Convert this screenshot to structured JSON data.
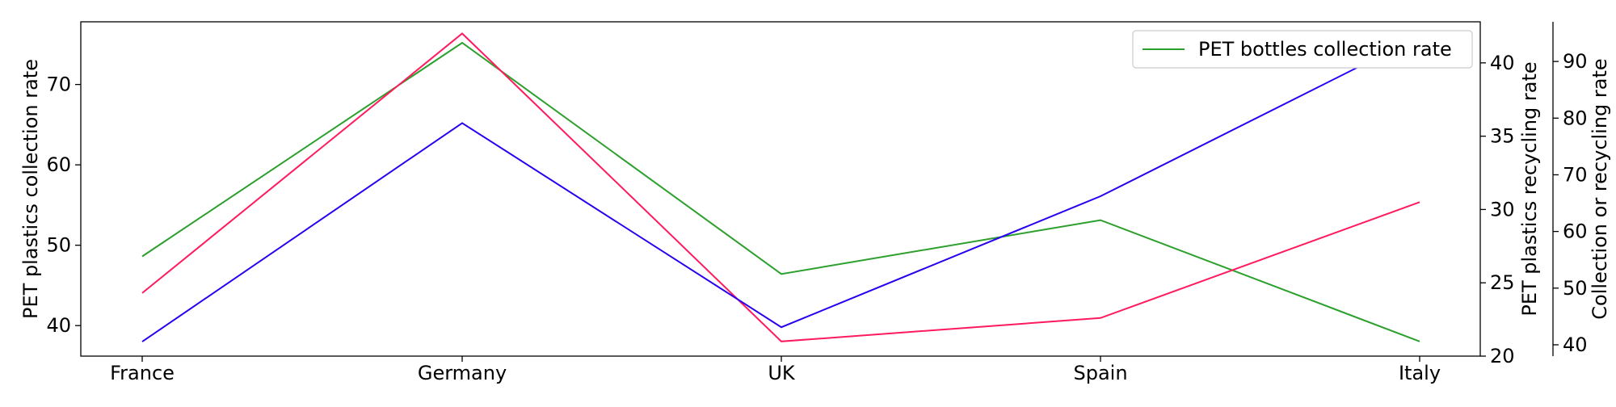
{
  "chart_data": {
    "type": "line",
    "categories": [
      "France",
      "Germany",
      "UK",
      "Spain",
      "Italy"
    ],
    "axes": {
      "left": {
        "label": "PET plastics collection rate",
        "ylim": [
          36.2,
          77.8
        ],
        "ticks": [
          40,
          50,
          60,
          70
        ]
      },
      "right_inner": {
        "label": "PET plastics recycling rate",
        "ylim": [
          20.0,
          42.8
        ],
        "ticks": [
          20,
          25,
          30,
          35,
          40
        ]
      },
      "right_outer": {
        "label": "Collection or recycling rate",
        "ylim": [
          38,
          97
        ],
        "ticks": [
          40,
          50,
          60,
          70,
          80,
          90
        ]
      }
    },
    "series": [
      {
        "name": "PET bottles collection rate",
        "axis": "right_outer",
        "color": "#2ca02c",
        "values": [
          55.6,
          93.3,
          52.5,
          62.0,
          40.6
        ],
        "in_legend": true
      },
      {
        "axis": "right_inner",
        "color": "#ff1a5e",
        "values": [
          24.3,
          42.0,
          21.0,
          22.6,
          30.5
        ],
        "in_legend": false
      },
      {
        "axis": "left",
        "color": "#2a00f0",
        "values": [
          38.0,
          65.2,
          39.8,
          56.1,
          76.0
        ],
        "in_legend": false
      }
    ],
    "legend": {
      "position": "top-right"
    },
    "grid": false
  }
}
